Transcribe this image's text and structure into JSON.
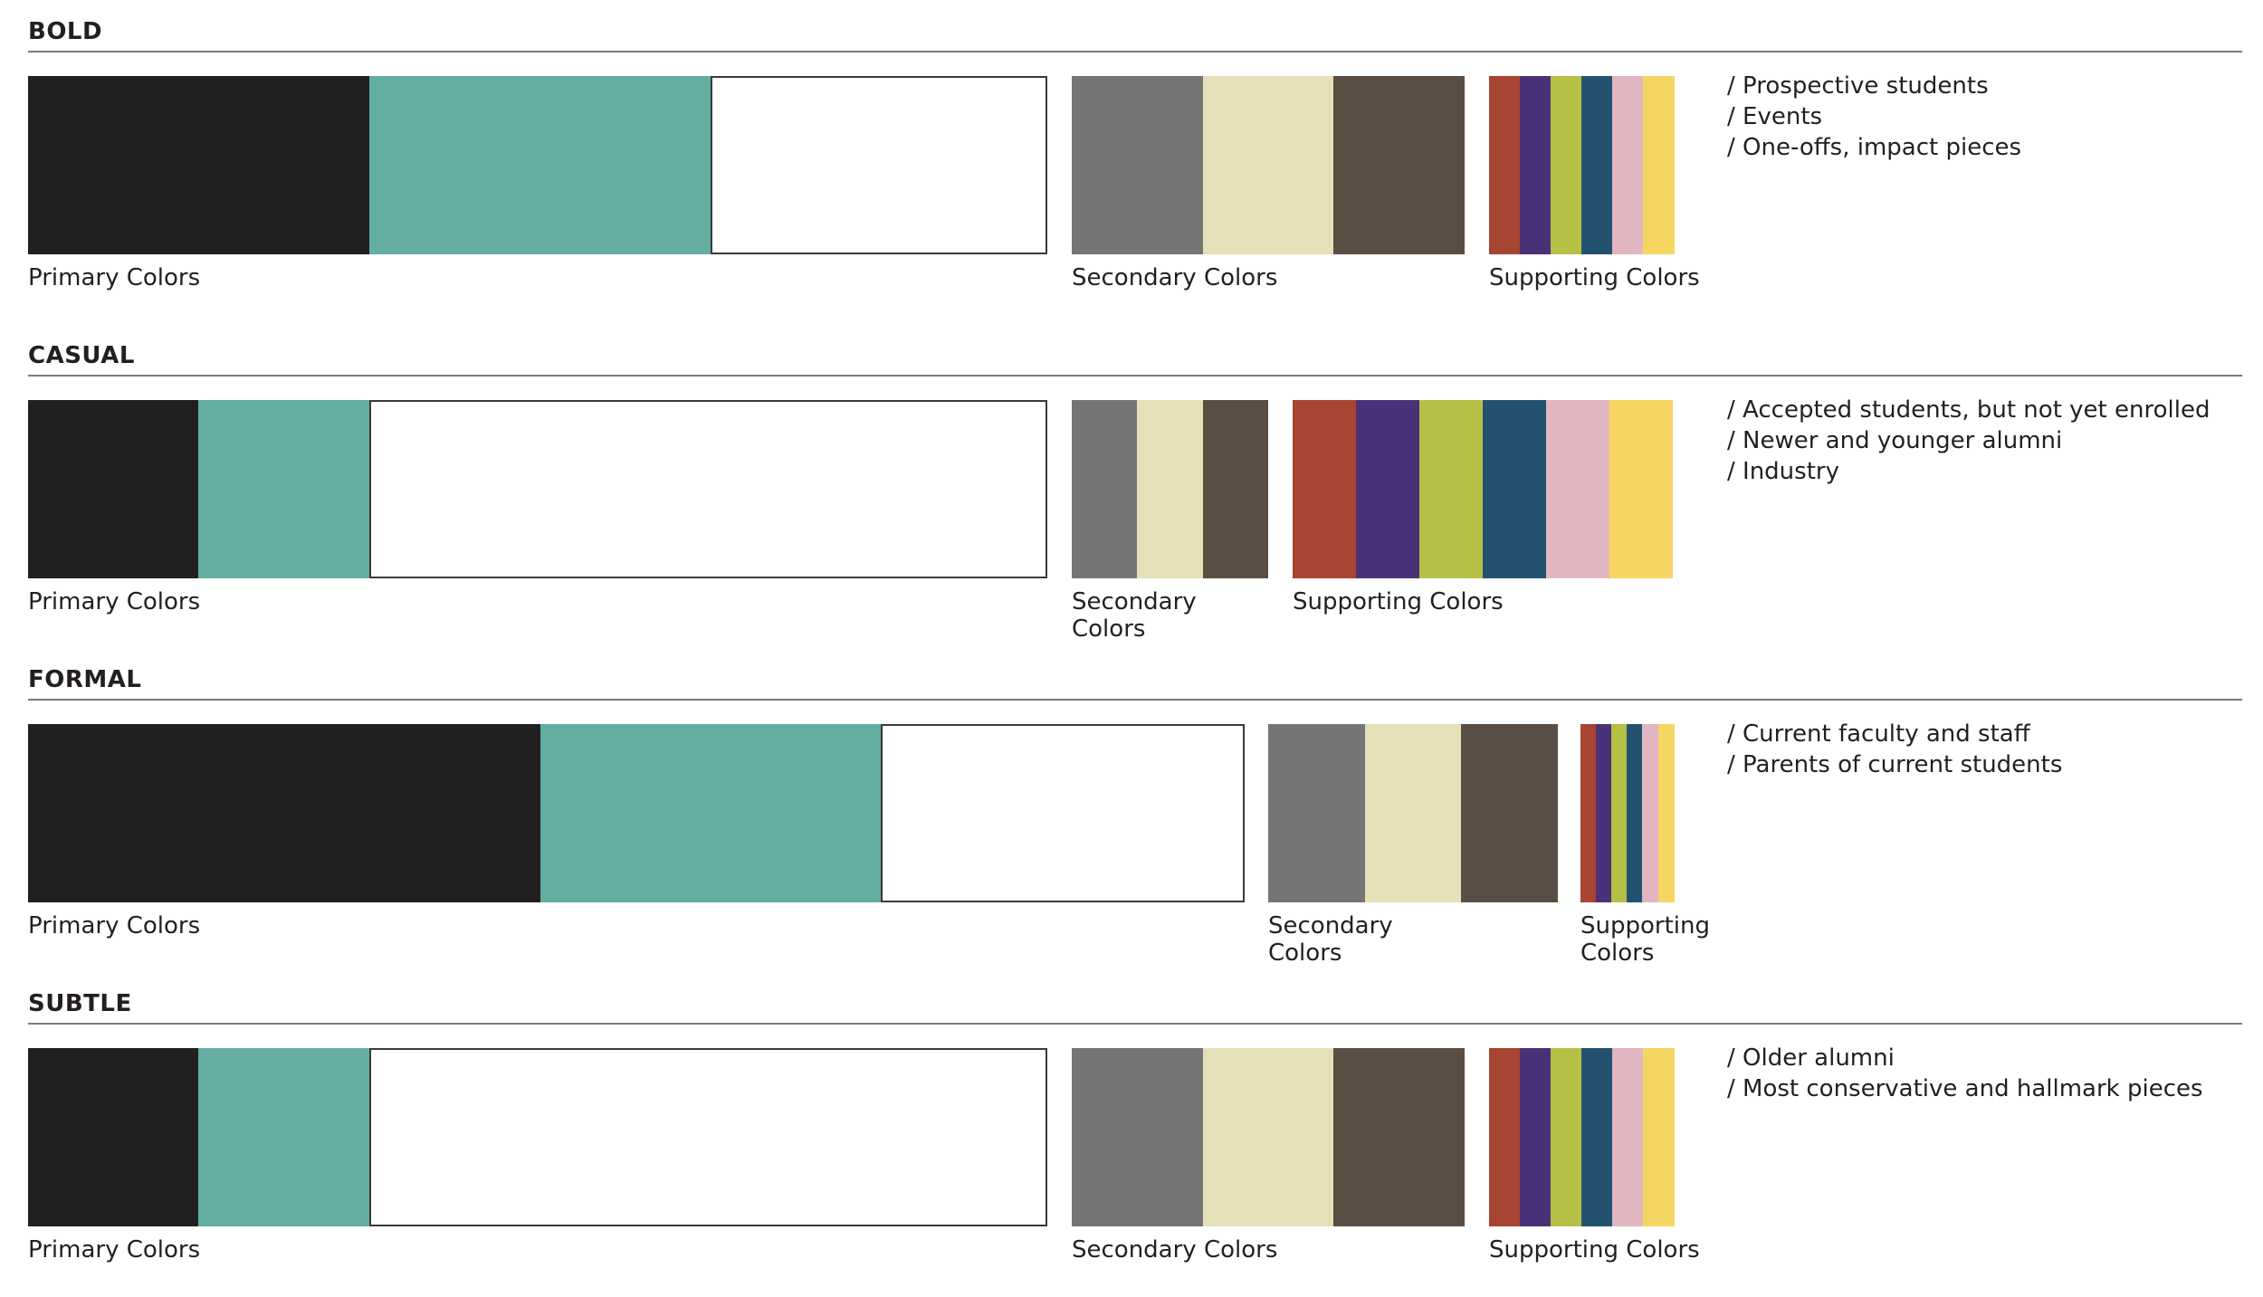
{
  "colors": {
    "black": "#211f20",
    "teal": "#63ada2",
    "white": "#ffffff",
    "gray": "#757577",
    "cream": "#e6e0b8",
    "brown": "#5a4e44",
    "red": "#a84432",
    "purple": "#4a3177",
    "olive": "#b6c044",
    "navy": "#235270",
    "pink": "#e1b6c1",
    "yellow": "#f5d663"
  },
  "sections": [
    {
      "title": "BOLD",
      "primary_label": "Primary Colors",
      "secondary_label": "Secondary Colors",
      "supporting_label": "Supporting Colors",
      "notes": [
        "/ Prospective students",
        "/ Events",
        "/ One-offs, impact pieces"
      ]
    },
    {
      "title": "CASUAL",
      "primary_label": "Primary Colors",
      "secondary_label_lines": [
        "Secondary",
        "Colors"
      ],
      "supporting_label": "Supporting Colors",
      "notes": [
        "/ Accepted students, but not yet enrolled",
        "/ Newer and younger alumni",
        "/ Industry"
      ]
    },
    {
      "title": "FORMAL",
      "primary_label": "Primary Colors",
      "secondary_label_lines": [
        "Secondary",
        "Colors"
      ],
      "supporting_label_lines": [
        "Supporting",
        "Colors"
      ],
      "notes": [
        "/ Current faculty and staff",
        "/ Parents of current students"
      ]
    },
    {
      "title": "SUBTLE",
      "primary_label": "Primary Colors",
      "secondary_label": "Secondary Colors",
      "supporting_label": "Supporting Colors",
      "notes": [
        "/ Older alumni",
        "/ Most conservative and hallmark pieces"
      ]
    }
  ]
}
